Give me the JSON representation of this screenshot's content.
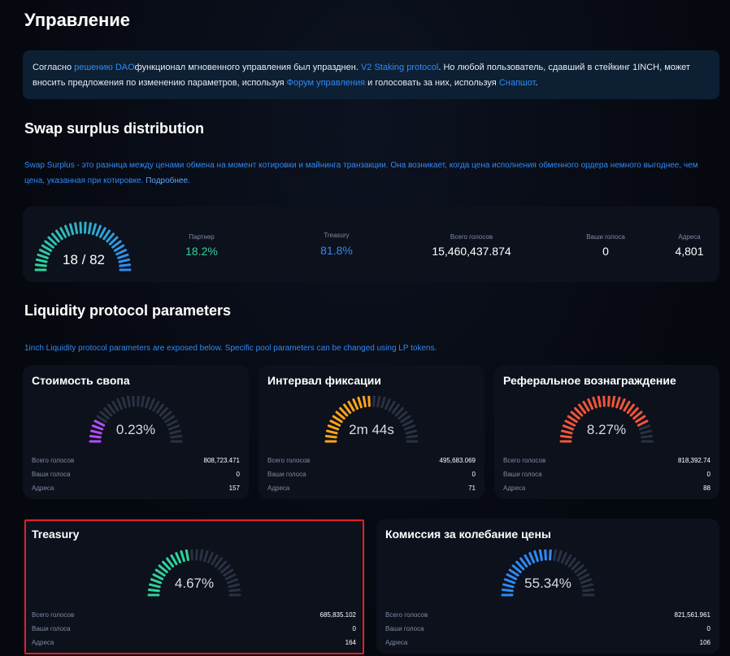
{
  "page": {
    "title": "Управление"
  },
  "notice": {
    "t1": "Согласно ",
    "link1": "решению DAO",
    "t2": "функционал мгновенного управления был упразднен. ",
    "link2": "V2 Staking protocol",
    "t3": ".  Но любой пользователь, сдавший в стейкинг 1INCH, может вносить предложения по изменению параметров, используя ",
    "link3": "Форум управления",
    "t4": " и голосовать за них, используя ",
    "link4": "Снапшот",
    "t5": "."
  },
  "swap": {
    "title": "Swap surplus distribution",
    "desc": "Swap Surplus - это разница между ценами обмена на момент котировки и майнинга транзакции. Она возникает, когда цена исполнения обменного ордера немного выгоднее, чем цена, указанная при котировке. ",
    "more_link": "Подробнее.",
    "gauge_value": "18 / 82",
    "gauge_fraction": 0.18,
    "stats": [
      {
        "label": "Партнер",
        "value": "18.2%",
        "color": "#2fd39a"
      },
      {
        "label": "Treasury",
        "value": "81.8%",
        "color": "#2f8af5"
      },
      {
        "label": "Всего голосов",
        "value": "15,460,437.874",
        "color": "#ffffff"
      },
      {
        "label": "Ваши голоса",
        "value": "0",
        "color": "#ffffff"
      },
      {
        "label": "Адреса",
        "value": "4,801",
        "color": "#ffffff"
      }
    ]
  },
  "liquidity": {
    "title": "Liquidity protocol parameters",
    "desc": "1inch Liquidity protocol parameters are exposed below. Specific pool parameters can be changed using LP tokens.",
    "row_labels": {
      "total": "Всего голосов",
      "yours": "Ваши голоса",
      "addresses": "Адреса"
    },
    "cards": [
      {
        "title": "Стоимость свопа",
        "value": "0.23%",
        "fraction": 0.18,
        "color": "#b34dff",
        "total": "808,723.471",
        "yours": "0",
        "addresses": "157"
      },
      {
        "title": "Интервал фиксации",
        "value": "2m 44s",
        "fraction": 0.5,
        "color": "#ffa31a",
        "total": "495,683.069",
        "yours": "0",
        "addresses": "71"
      },
      {
        "title": "Реферальное вознаграждение",
        "value": "8.27%",
        "fraction": 0.86,
        "color": "#f2553a",
        "total": "818,392.74",
        "yours": "0",
        "addresses": "88"
      },
      {
        "title": "Treasury",
        "value": "4.67%",
        "fraction": 0.47,
        "color": "#2fd39a",
        "total": "685,835.102",
        "yours": "0",
        "addresses": "164"
      },
      {
        "title": "Комиссия за колебание цены",
        "value": "55.34%",
        "fraction": 0.55,
        "color": "#2f8af5",
        "total": "821,561.961",
        "yours": "0",
        "addresses": "106"
      }
    ]
  },
  "colors": {
    "inactive_tick": "#2a3142",
    "swap_gauge_start": "#2fd39a",
    "swap_gauge_end": "#2f8af5"
  }
}
